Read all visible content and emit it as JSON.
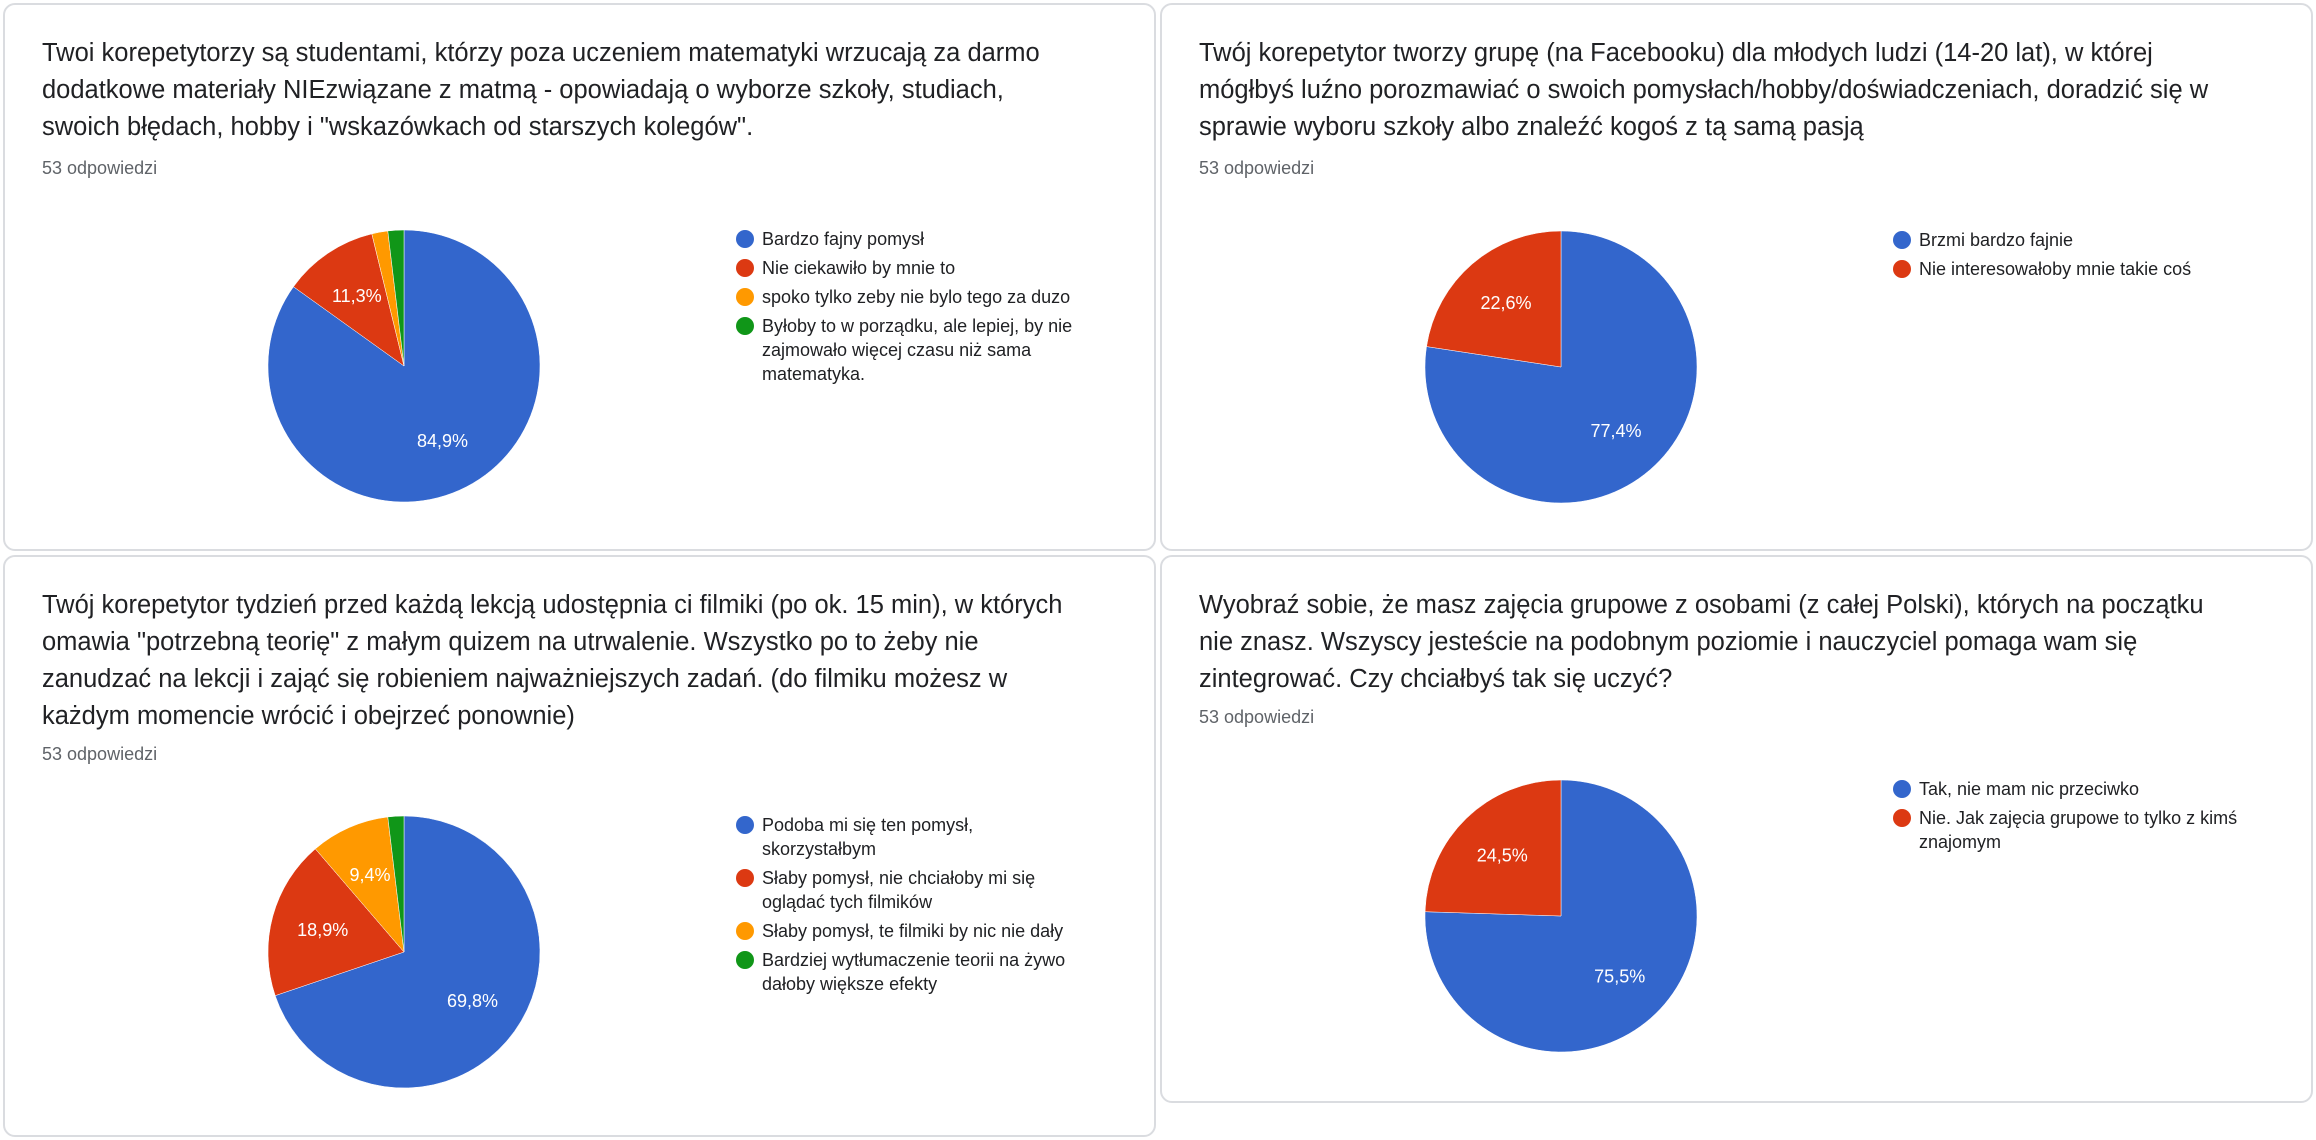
{
  "colors": {
    "blue": "#3366cc",
    "red": "#dc3912",
    "orange": "#ff9900",
    "green": "#109618"
  },
  "chart_data": [
    {
      "type": "pie",
      "title": "Twoi korepetytorzy są studentami, którzy poza uczeniem matematyki wrzucają za darmo dodatkowe materiały NIEzwiązane z matmą - opowiadają o wyborze szkoły, studiach, swoich błędach, hobby i \"wskazówkach od starszych kolegów\".",
      "responses": "53 odpowiedzi",
      "categories": [
        "Bardzo fajny pomysł",
        "Nie ciekawiło by mnie to",
        "spoko tylko zeby nie bylo tego za duzo",
        "Byłoby to w porządku, ale lepiej, by nie zajmowało więcej czasu niż sama matematyka."
      ],
      "values": [
        84.9,
        11.3,
        1.9,
        1.9
      ],
      "value_labels": [
        "84,9%",
        "11,3%",
        "",
        ""
      ],
      "colors": [
        "#3366cc",
        "#dc3912",
        "#ff9900",
        "#109618"
      ],
      "legend": "right"
    },
    {
      "type": "pie",
      "title": "Twój korepetytor tworzy grupę (na Facebooku) dla młodych ludzi (14-20 lat), w której mógłbyś luźno porozmawiać o swoich pomysłach/hobby/doświadczeniach, doradzić się w sprawie wyboru szkoły albo znaleźć kogoś z tą samą pasją",
      "responses": "53 odpowiedzi",
      "categories": [
        "Brzmi bardzo fajnie",
        "Nie interesowałoby mnie takie coś"
      ],
      "values": [
        77.4,
        22.6
      ],
      "value_labels": [
        "77,4%",
        "22,6%"
      ],
      "colors": [
        "#3366cc",
        "#dc3912"
      ],
      "legend": "right"
    },
    {
      "type": "pie",
      "title": "Twój korepetytor tydzień przed każdą lekcją udostępnia ci filmiki (po ok. 15 min), w których omawia \"potrzebną teorię\" z małym quizem na utrwalenie. Wszystko po to żeby nie zanudzać na lekcji i zająć się robieniem najważniejszych zadań. (do filmiku możesz w każdym momencie wrócić i obejrzeć ponownie)",
      "responses": "53 odpowiedzi",
      "categories": [
        "Podoba mi się ten pomysł, skorzystałbym",
        "Słaby pomysł, nie chciałoby mi się oglądać tych filmików",
        "Słaby pomysł, te filmiki by nic nie dały",
        "Bardziej wytłumaczenie teorii na żywo dałoby większe efekty"
      ],
      "values": [
        69.8,
        18.9,
        9.4,
        1.9
      ],
      "value_labels": [
        "69,8%",
        "18,9%",
        "9,4%",
        ""
      ],
      "colors": [
        "#3366cc",
        "#dc3912",
        "#ff9900",
        "#109618"
      ],
      "legend": "right"
    },
    {
      "type": "pie",
      "title": "Wyobraź sobie, że masz zajęcia grupowe z osobami (z całej Polski), których na początku nie znasz. Wszyscy jesteście na podobnym poziomie i nauczyciel pomaga wam się zintegrować. Czy chciałbyś tak się uczyć?",
      "responses": "53 odpowiedzi",
      "categories": [
        "Tak, nie mam nic przeciwko",
        "Nie. Jak zajęcia grupowe to tylko z kimś znajomym"
      ],
      "values": [
        75.5,
        24.5
      ],
      "value_labels": [
        "75,5%",
        "24,5%"
      ],
      "colors": [
        "#3366cc",
        "#dc3912"
      ],
      "legend": "right"
    }
  ]
}
